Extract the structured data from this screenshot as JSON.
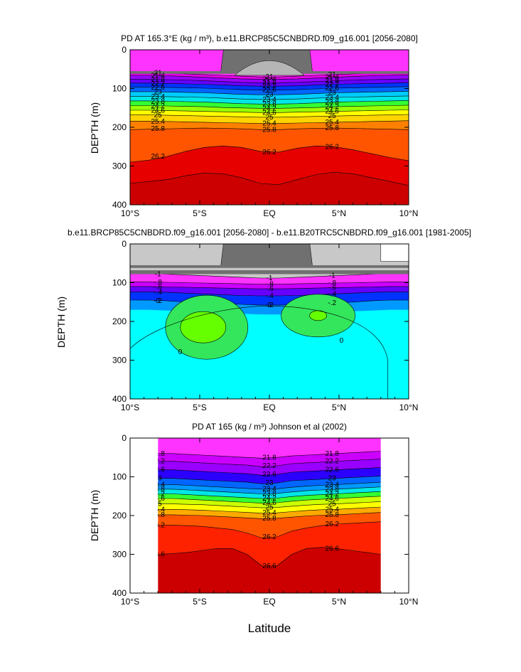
{
  "chart_data": [
    {
      "type": "contour",
      "title": "PD AT 165.3°E (kg / m³), b.e11.BRCP85C5CNBDRD.f09_g16.001 [2056-2080]",
      "ylabel": "DEPTH (m)",
      "xlabel": "",
      "x_ticks": [
        "10°S",
        "5°S",
        "EQ",
        "5°N",
        "10°N"
      ],
      "y_ticks": [
        "0",
        "100",
        "200",
        "300",
        "400"
      ],
      "xlim": [
        -10,
        10
      ],
      "ylim": [
        0,
        400
      ],
      "y_inverted": true,
      "contour_labels": [
        "21",
        "21.4",
        "21.8",
        "22.2",
        "22.6",
        "23",
        "23.4",
        "23.8",
        "24.2",
        "24.6",
        "25",
        "25.4",
        "25.8",
        "26.2"
      ],
      "contours": [
        {
          "value": 21.0,
          "depth": [
            58,
            58,
            60,
            62,
            64,
            66,
            68,
            70,
            70,
            68,
            66,
            64,
            62,
            60,
            58,
            58
          ]
        },
        {
          "value": 21.4,
          "depth": [
            66,
            66,
            67,
            69,
            71,
            73,
            75,
            76,
            76,
            75,
            73,
            71,
            69,
            67,
            66,
            65
          ]
        },
        {
          "value": 21.8,
          "depth": [
            76,
            76,
            77,
            78,
            80,
            82,
            84,
            85,
            85,
            84,
            82,
            80,
            78,
            77,
            76,
            75
          ]
        },
        {
          "value": 22.2,
          "depth": [
            86,
            86,
            87,
            88,
            89,
            91,
            93,
            94,
            94,
            93,
            91,
            89,
            88,
            87,
            86,
            85
          ]
        },
        {
          "value": 22.6,
          "depth": [
            96,
            96,
            97,
            98,
            99,
            101,
            103,
            104,
            104,
            103,
            101,
            99,
            98,
            97,
            96,
            95
          ]
        },
        {
          "value": 23.0,
          "depth": [
            108,
            108,
            109,
            110,
            111,
            113,
            115,
            116,
            116,
            115,
            113,
            111,
            110,
            109,
            108,
            107
          ]
        },
        {
          "value": 23.4,
          "depth": [
            120,
            120,
            121,
            122,
            123,
            125,
            127,
            128,
            128,
            127,
            125,
            123,
            122,
            121,
            120,
            119
          ]
        },
        {
          "value": 23.8,
          "depth": [
            132,
            132,
            133,
            134,
            135,
            137,
            139,
            140,
            140,
            139,
            137,
            135,
            134,
            133,
            132,
            131
          ]
        },
        {
          "value": 24.2,
          "depth": [
            144,
            144,
            145,
            146,
            147,
            149,
            150,
            151,
            151,
            150,
            149,
            147,
            146,
            145,
            144,
            143
          ]
        },
        {
          "value": 24.6,
          "depth": [
            156,
            156,
            157,
            158,
            159,
            160,
            161,
            162,
            162,
            161,
            160,
            159,
            158,
            157,
            156,
            155
          ]
        },
        {
          "value": 25.0,
          "depth": [
            168,
            168,
            169,
            170,
            171,
            172,
            173,
            174,
            174,
            173,
            172,
            171,
            170,
            169,
            168,
            167
          ]
        },
        {
          "value": 25.4,
          "depth": [
            184,
            184,
            185,
            186,
            187,
            188,
            189,
            190,
            190,
            189,
            188,
            187,
            186,
            185,
            184,
            183
          ]
        },
        {
          "value": 25.8,
          "depth": [
            206,
            205,
            204,
            203,
            202,
            203,
            204,
            206,
            206,
            204,
            203,
            202,
            203,
            204,
            205,
            206
          ]
        },
        {
          "value": 26.2,
          "depth": [
            290,
            285,
            275,
            262,
            252,
            248,
            252,
            262,
            264,
            254,
            248,
            250,
            258,
            268,
            278,
            286
          ]
        },
        {
          "value": 26.6,
          "depth": [
            345,
            340,
            335,
            325,
            318,
            320,
            330,
            345,
            348,
            335,
            322,
            316,
            320,
            330,
            340,
            350
          ]
        }
      ]
    },
    {
      "type": "contour",
      "title": "b.e11.BRCP85C5CNBDRD.f09_g16.001 [2056-2080] - b.e11.B20TRC5CNBDRD.f09_g16.001 [1981-2005]",
      "ylabel": "DEPTH (m)",
      "x_ticks": [
        "10°S",
        "5°S",
        "EQ",
        "5°N",
        "10°N"
      ],
      "y_ticks": [
        "0",
        "100",
        "200",
        "300",
        "400"
      ],
      "xlim": [
        -10,
        10
      ],
      "ylim": [
        0,
        400
      ],
      "y_inverted": true,
      "contour_labels": [
        "-1",
        "-.8",
        "-.6",
        "-.4",
        "-.2",
        "0"
      ],
      "contours": [
        {
          "value": -1.0,
          "depth": [
            76,
            76,
            78,
            80,
            82,
            84,
            86,
            88,
            88,
            86,
            84,
            82,
            80,
            78,
            76,
            76
          ]
        },
        {
          "value": -0.8,
          "depth": [
            98,
            98,
            99,
            100,
            101,
            102,
            103,
            104,
            104,
            103,
            102,
            101,
            100,
            99,
            98,
            98
          ]
        },
        {
          "value": -0.6,
          "depth": [
            110,
            110,
            111,
            112,
            113,
            114,
            115,
            116,
            116,
            115,
            114,
            113,
            112,
            111,
            110,
            110
          ]
        },
        {
          "value": -0.4,
          "depth": [
            124,
            124,
            125,
            127,
            129,
            131,
            133,
            134,
            134,
            133,
            131,
            129,
            127,
            125,
            124,
            124
          ]
        },
        {
          "value": -0.2,
          "depth": [
            145,
            145,
            147,
            150,
            152,
            154,
            156,
            158,
            158,
            156,
            154,
            152,
            150,
            147,
            145,
            145
          ]
        }
      ],
      "zero_lobes": [
        {
          "center_lat": -4.5,
          "center_depth": 215,
          "label": "0"
        },
        {
          "center_lat": 3.5,
          "center_depth": 185,
          "label": "0"
        }
      ]
    },
    {
      "type": "contour",
      "title": "PD AT 165 (kg / m³) Johnson et al (2002)",
      "ylabel": "DEPTH (m)",
      "xlabel": "Latitude",
      "x_ticks": [
        "10°S",
        "5°S",
        "EQ",
        "5°N",
        "10°N"
      ],
      "y_ticks": [
        "0",
        "100",
        "200",
        "300",
        "400"
      ],
      "xlim": [
        -10,
        10
      ],
      "ylim": [
        0,
        400
      ],
      "data_xlim": [
        -8,
        8
      ],
      "y_inverted": true,
      "contour_labels": [
        "21.8",
        "22.2",
        "22.6",
        "23",
        "23.4",
        "23.8",
        "24.2",
        "24.6",
        "25",
        "25.4",
        "25.8",
        "26.2",
        "26.6"
      ],
      "contours": [
        {
          "value": 21.8,
          "depth": [
            40,
            40,
            42,
            44,
            46,
            48,
            50,
            52,
            50,
            46,
            44,
            42,
            40,
            38,
            36,
            34
          ]
        },
        {
          "value": 22.2,
          "depth": [
            60,
            60,
            62,
            64,
            66,
            68,
            70,
            74,
            72,
            66,
            64,
            62,
            60,
            58,
            56,
            54
          ]
        },
        {
          "value": 22.6,
          "depth": [
            82,
            82,
            84,
            86,
            88,
            90,
            92,
            96,
            94,
            88,
            86,
            84,
            82,
            80,
            78,
            76
          ]
        },
        {
          "value": 23.0,
          "depth": [
            104,
            104,
            106,
            108,
            110,
            112,
            114,
            118,
            116,
            110,
            108,
            106,
            104,
            102,
            100,
            98
          ]
        },
        {
          "value": 23.4,
          "depth": [
            120,
            120,
            122,
            124,
            126,
            128,
            130,
            132,
            131,
            127,
            124,
            122,
            120,
            118,
            116,
            114
          ]
        },
        {
          "value": 23.8,
          "depth": [
            132,
            132,
            134,
            136,
            138,
            140,
            142,
            144,
            143,
            139,
            136,
            134,
            132,
            130,
            128,
            126
          ]
        },
        {
          "value": 24.2,
          "depth": [
            144,
            144,
            146,
            148,
            150,
            152,
            154,
            156,
            155,
            151,
            148,
            146,
            144,
            142,
            140,
            138
          ]
        },
        {
          "value": 24.6,
          "depth": [
            156,
            156,
            158,
            160,
            162,
            164,
            166,
            168,
            167,
            163,
            160,
            158,
            156,
            154,
            152,
            150
          ]
        },
        {
          "value": 25.0,
          "depth": [
            170,
            170,
            171,
            172,
            174,
            176,
            178,
            180,
            179,
            176,
            173,
            171,
            170,
            168,
            166,
            164
          ]
        },
        {
          "value": 25.4,
          "depth": [
            184,
            184,
            185,
            186,
            188,
            190,
            192,
            194,
            193,
            190,
            187,
            185,
            184,
            182,
            180,
            178
          ]
        },
        {
          "value": 25.8,
          "depth": [
            198,
            198,
            199,
            200,
            202,
            204,
            206,
            208,
            207,
            204,
            201,
            199,
            198,
            196,
            194,
            192
          ]
        },
        {
          "value": 26.2,
          "depth": [
            225,
            225,
            226,
            228,
            232,
            236,
            245,
            258,
            255,
            240,
            232,
            226,
            222,
            220,
            218,
            216
          ]
        },
        {
          "value": 26.6,
          "depth": [
            300,
            298,
            295,
            290,
            285,
            285,
            300,
            330,
            330,
            300,
            285,
            282,
            285,
            290,
            295,
            300
          ]
        }
      ]
    }
  ],
  "xlabel_main": "Latitude",
  "colors": {
    "land": "#707070",
    "land_light": "#b5b5b5",
    "frame": "#000000"
  }
}
